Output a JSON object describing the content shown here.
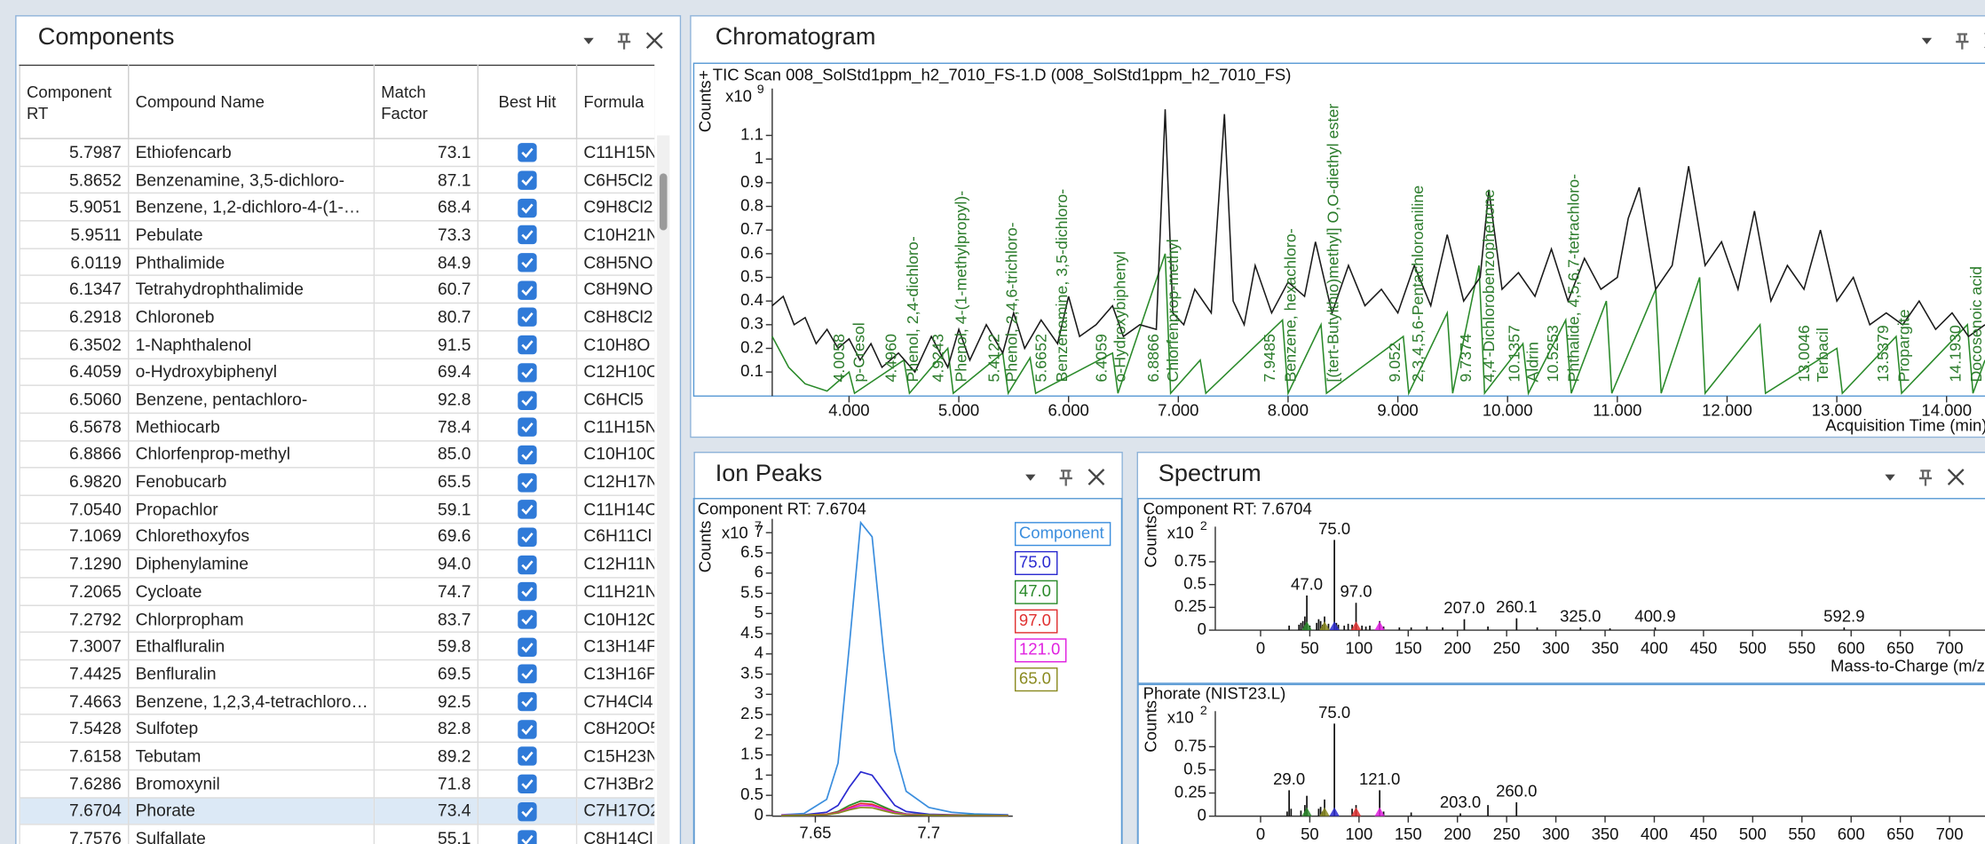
{
  "components": {
    "title": "Components",
    "columns": [
      "Component RT",
      "Compound Name",
      "Match Factor",
      "Best Hit",
      "Formula"
    ],
    "selected_row": 24,
    "rows": [
      [
        "5.7987",
        "Ethiofencarb",
        "73.1",
        true,
        "C11H15N"
      ],
      [
        "5.8652",
        "Benzenamine, 3,5-dichloro-",
        "87.1",
        true,
        "C6H5Cl2"
      ],
      [
        "5.9051",
        "Benzene, 1,2-dichloro-4-(1-…",
        "68.4",
        true,
        "C9H8Cl2"
      ],
      [
        "5.9511",
        "Pebulate",
        "73.3",
        true,
        "C10H21N"
      ],
      [
        "6.0119",
        "Phthalimide",
        "84.9",
        true,
        "C8H5NO"
      ],
      [
        "6.1347",
        "Tetrahydrophthalimide",
        "60.7",
        true,
        "C8H9NO"
      ],
      [
        "6.2918",
        "Chloroneb",
        "80.7",
        true,
        "C8H8Cl2"
      ],
      [
        "6.3502",
        "1-Naphthalenol",
        "91.5",
        true,
        "C10H8O"
      ],
      [
        "6.4059",
        "o-Hydroxybiphenyl",
        "69.4",
        true,
        "C12H10O"
      ],
      [
        "6.5060",
        "Benzene, pentachloro-",
        "92.8",
        true,
        "C6HCl5"
      ],
      [
        "6.5678",
        "Methiocarb",
        "78.4",
        true,
        "C11H15N"
      ],
      [
        "6.8866",
        "Chlorfenprop-methyl",
        "85.0",
        true,
        "C10H10C"
      ],
      [
        "6.9820",
        "Fenobucarb",
        "65.5",
        true,
        "C12H17N"
      ],
      [
        "7.0540",
        "Propachlor",
        "59.1",
        true,
        "C11H14C"
      ],
      [
        "7.1069",
        "Chlorethoxyfos",
        "69.6",
        true,
        "C6H11Cl"
      ],
      [
        "7.1290",
        "Diphenylamine",
        "94.0",
        true,
        "C12H11N"
      ],
      [
        "7.2065",
        "Cycloate",
        "74.7",
        true,
        "C11H21N"
      ],
      [
        "7.2792",
        "Chlorpropham",
        "83.7",
        true,
        "C10H12C"
      ],
      [
        "7.3007",
        "Ethalfluralin",
        "59.8",
        true,
        "C13H14F"
      ],
      [
        "7.4425",
        "Benfluralin",
        "69.5",
        true,
        "C13H16F"
      ],
      [
        "7.4663",
        "Benzene, 1,2,3,4-tetrachloro…",
        "92.5",
        true,
        "C7H4Cl4"
      ],
      [
        "7.5428",
        "Sulfotep",
        "82.8",
        true,
        "C8H20O5"
      ],
      [
        "7.6158",
        "Tebutam",
        "89.2",
        true,
        "C15H23N"
      ],
      [
        "7.6286",
        "Bromoxynil",
        "71.8",
        true,
        "C7H3Br2"
      ],
      [
        "7.6704",
        "Phorate",
        "73.4",
        true,
        "C7H17O2"
      ],
      [
        "7.7576",
        "Sulfallate",
        "55.1",
        true,
        "C8H14Cl"
      ]
    ]
  },
  "chromatogram": {
    "title": "Chromatogram",
    "type": "line",
    "header": "+ TIC Scan 008_SolStd1ppm_h2_7010_FS-1.D (008_SolStd1ppm_h2_7010_FS)",
    "y_label": "Counts",
    "y_scale": "x10",
    "y_exponent": 9,
    "x_label": "Acquisition Time (min)",
    "xlim": [
      3.3,
      14.35
    ],
    "ylim": [
      0,
      1.3
    ],
    "xticks": [
      {
        "value": 4,
        "label": "4.000"
      },
      {
        "value": 5,
        "label": "5.000"
      },
      {
        "value": 6,
        "label": "6.000"
      },
      {
        "value": 7,
        "label": "7.000"
      },
      {
        "value": 8,
        "label": "8.000"
      },
      {
        "value": 9,
        "label": "9.000"
      },
      {
        "value": 10,
        "label": "10.000"
      },
      {
        "value": 11,
        "label": "11.000"
      },
      {
        "value": 12,
        "label": "12.000"
      },
      {
        "value": 13,
        "label": "13.000"
      },
      {
        "value": 14,
        "label": "14.000"
      }
    ],
    "yticks": [
      0.1,
      0.2,
      0.3,
      0.4,
      0.5,
      0.6,
      0.7,
      0.8,
      0.9,
      1,
      1.1
    ],
    "series": [
      {
        "color": "#2a8a2a",
        "x": [
          3.3,
          3.45,
          3.6,
          3.8,
          4.0,
          4.05,
          4.5,
          4.55,
          4.9,
          4.95,
          5.4,
          5.45,
          5.65,
          5.7,
          6.4,
          6.45,
          6.88,
          6.93,
          7.2,
          7.25,
          7.95,
          8.0,
          8.3,
          8.35,
          9.05,
          9.1,
          9.45,
          9.5,
          9.74,
          9.79,
          10.14,
          10.19,
          10.53,
          10.58,
          10.9,
          10.95,
          11.35,
          11.4,
          11.75,
          11.8,
          12.3,
          12.35,
          13.0,
          13.05,
          13.54,
          13.59,
          14.19,
          14.24,
          14.35
        ],
        "values": [
          0.25,
          0.12,
          0.05,
          0.02,
          0.1,
          0.01,
          0.15,
          0.01,
          0.2,
          0.01,
          0.18,
          0.01,
          0.16,
          0.01,
          0.18,
          0.01,
          0.6,
          0.01,
          0.15,
          0.01,
          0.32,
          0.01,
          0.3,
          0.01,
          0.25,
          0.01,
          0.35,
          0.01,
          0.55,
          0.01,
          0.22,
          0.01,
          0.32,
          0.01,
          0.4,
          0.01,
          0.45,
          0.01,
          0.5,
          0.01,
          0.3,
          0.01,
          0.2,
          0.01,
          0.25,
          0.01,
          0.3,
          0.01,
          0.15
        ]
      },
      {
        "color": "#1a1a1a",
        "x": [
          3.3,
          3.4,
          3.5,
          3.6,
          3.7,
          3.8,
          3.9,
          4.0,
          4.1,
          4.2,
          4.3,
          4.45,
          4.6,
          4.75,
          4.9,
          5.0,
          5.1,
          5.25,
          5.4,
          5.5,
          5.6,
          5.75,
          5.9,
          6.0,
          6.1,
          6.25,
          6.4,
          6.5,
          6.65,
          6.8,
          6.88,
          6.95,
          7.05,
          7.15,
          7.3,
          7.42,
          7.5,
          7.6,
          7.7,
          7.85,
          8.0,
          8.15,
          8.25,
          8.4,
          8.55,
          8.7,
          8.85,
          9.0,
          9.15,
          9.3,
          9.45,
          9.6,
          9.75,
          9.83,
          9.95,
          10.1,
          10.25,
          10.4,
          10.55,
          10.7,
          10.85,
          11.0,
          11.1,
          11.2,
          11.35,
          11.5,
          11.65,
          11.8,
          11.95,
          12.1,
          12.25,
          12.4,
          12.55,
          12.7,
          12.85,
          13.0,
          13.15,
          13.3,
          13.45,
          13.6,
          13.75,
          13.9,
          14.05,
          14.2,
          14.35
        ],
        "values": [
          0.38,
          0.42,
          0.3,
          0.33,
          0.22,
          0.28,
          0.2,
          0.24,
          0.15,
          0.22,
          0.12,
          0.18,
          0.1,
          0.25,
          0.12,
          0.28,
          0.15,
          0.3,
          0.18,
          0.35,
          0.2,
          0.32,
          0.22,
          0.42,
          0.25,
          0.3,
          0.38,
          0.25,
          0.3,
          0.28,
          1.21,
          0.35,
          0.3,
          0.45,
          0.35,
          1.19,
          0.4,
          0.3,
          0.55,
          0.35,
          0.48,
          0.42,
          0.65,
          0.35,
          0.55,
          0.38,
          0.45,
          0.35,
          0.55,
          0.38,
          0.68,
          0.4,
          0.5,
          0.87,
          0.45,
          0.52,
          0.42,
          0.62,
          0.4,
          0.58,
          0.45,
          0.5,
          0.75,
          0.88,
          0.45,
          0.55,
          0.97,
          0.55,
          0.65,
          0.45,
          0.78,
          0.4,
          0.55,
          0.45,
          0.7,
          0.4,
          0.5,
          0.3,
          0.35,
          0.3,
          0.4,
          0.28,
          0.35,
          0.25,
          0.3
        ]
      }
    ],
    "annotations": [
      {
        "x": 3.92,
        "text": "4.0058"
      },
      {
        "x": 4.1,
        "text": "p-Cresol"
      },
      {
        "x": 4.39,
        "text": "4.4960"
      },
      {
        "x": 4.59,
        "text": "Phenol, 2,4-dichloro-"
      },
      {
        "x": 4.82,
        "text": "4.9243"
      },
      {
        "x": 5.03,
        "text": "Phenol, 4-(1-methylpropyl)-"
      },
      {
        "x": 5.33,
        "text": "5.4122"
      },
      {
        "x": 5.49,
        "text": "Phenol, 2,4,6-trichloro-"
      },
      {
        "x": 5.76,
        "text": "5.6652"
      },
      {
        "x": 5.95,
        "text": "Benzenamine, 3,5-dichloro-"
      },
      {
        "x": 6.31,
        "text": "6.4059"
      },
      {
        "x": 6.48,
        "text": "o-Hydroxybiphenyl"
      },
      {
        "x": 6.78,
        "text": "6.8866"
      },
      {
        "x": 6.96,
        "text": "Chlorfenprop-methyl"
      },
      {
        "x": 7.84,
        "text": "7.9485"
      },
      {
        "x": 8.03,
        "text": "Benzene, hexachloro-"
      },
      {
        "x": 8.42,
        "text": "[(tert-Butylthio)methyl] O,O-diethyl ester"
      },
      {
        "x": 8.98,
        "text": "9.052"
      },
      {
        "x": 9.19,
        "text": "2,3,4,5,6-Pentachloroaniline"
      },
      {
        "x": 9.63,
        "text": "9.7374"
      },
      {
        "x": 9.84,
        "text": "4,4'-Dichlorobenzophenone"
      },
      {
        "x": 10.07,
        "text": "10.1357"
      },
      {
        "x": 10.24,
        "text": "Aldrin"
      },
      {
        "x": 10.42,
        "text": "10.5253"
      },
      {
        "x": 10.61,
        "text": "Phthalide, 4,5,6,7-tetrachloro-"
      },
      {
        "x": 12.71,
        "text": "13.0046"
      },
      {
        "x": 12.88,
        "text": "Terbacil"
      },
      {
        "x": 13.43,
        "text": "13.5379"
      },
      {
        "x": 13.62,
        "text": "Propargite"
      },
      {
        "x": 14.09,
        "text": "14.1930"
      },
      {
        "x": 14.28,
        "text": "Docosenoic acid"
      }
    ]
  },
  "ion_peaks": {
    "title": "Ion Peaks",
    "type": "line",
    "header": "Component RT: 7.6704",
    "y_label": "Counts",
    "y_scale": "x10",
    "y_exponent": 7,
    "xlim": [
      7.631,
      7.737
    ],
    "ylim": [
      0,
      7.5
    ],
    "xticks": [
      7.65,
      7.7
    ],
    "yticks": [
      0,
      0.5,
      1,
      1.5,
      2,
      2.5,
      3,
      3.5,
      4,
      4.5,
      5,
      5.5,
      6,
      6.5,
      7
    ],
    "x": [
      7.635,
      7.645,
      7.655,
      7.66,
      7.665,
      7.67,
      7.675,
      7.68,
      7.685,
      7.69,
      7.7,
      7.71,
      7.72,
      7.735
    ],
    "series": [
      {
        "name": "Component",
        "color": "#3b8ede",
        "values": [
          0.02,
          0.05,
          0.4,
          1.3,
          4.2,
          7.25,
          6.9,
          4.1,
          1.6,
          0.6,
          0.2,
          0.08,
          0.04,
          0.02
        ]
      },
      {
        "name": "75.0",
        "mz": 75,
        "color": "#2b2bd0",
        "values": [
          0.01,
          0.02,
          0.08,
          0.25,
          0.7,
          1.08,
          1.0,
          0.62,
          0.25,
          0.1,
          0.03,
          0.02,
          0.01,
          0.01
        ]
      },
      {
        "name": "47.0",
        "mz": 47,
        "color": "#2a8a2a",
        "values": [
          0.01,
          0.01,
          0.03,
          0.1,
          0.25,
          0.36,
          0.34,
          0.22,
          0.1,
          0.04,
          0.02,
          0.01,
          0.01,
          0
        ]
      },
      {
        "name": "97.0",
        "mz": 97,
        "color": "#e03030",
        "values": [
          0.01,
          0.01,
          0.03,
          0.08,
          0.2,
          0.3,
          0.28,
          0.18,
          0.08,
          0.03,
          0.01,
          0.01,
          0,
          0
        ]
      },
      {
        "name": "121.0",
        "mz": 121,
        "color": "#e020e0",
        "values": [
          0.01,
          0.01,
          0.02,
          0.07,
          0.17,
          0.25,
          0.24,
          0.16,
          0.07,
          0.03,
          0.01,
          0,
          0,
          0
        ]
      },
      {
        "name": "65.0",
        "mz": 65,
        "color": "#8a8a20",
        "values": [
          0,
          0.01,
          0.02,
          0.06,
          0.14,
          0.2,
          0.19,
          0.12,
          0.05,
          0.02,
          0.01,
          0,
          0,
          0
        ]
      }
    ]
  },
  "spectrum": {
    "title": "Spectrum",
    "type": "bar",
    "x_label": "Mass-to-Charge (m/z)",
    "xlim": [
      -46,
      736
    ],
    "xticks": [
      0,
      50,
      100,
      150,
      200,
      250,
      300,
      350,
      400,
      450,
      500,
      550,
      600,
      650,
      700
    ],
    "panels": [
      {
        "header": "Component RT: 7.6704",
        "y_label": "Counts",
        "y_scale": "x10",
        "y_exponent": 2,
        "ylim": [
          0,
          1.08
        ],
        "yticks": [
          0,
          0.25,
          0.5,
          0.75
        ],
        "mz": [
          29,
          39,
          41,
          43,
          45,
          47,
          50,
          57,
          59,
          61,
          63,
          65,
          69,
          75,
          77,
          79,
          85,
          89,
          93,
          97,
          103,
          107,
          111,
          121,
          125,
          141,
          153,
          169,
          185,
          207,
          231,
          260.1,
          281,
          325,
          355,
          400.9,
          592.9
        ],
        "values": [
          0.05,
          0.06,
          0.08,
          0.1,
          0.15,
          0.38,
          0.05,
          0.08,
          0.12,
          0.1,
          0.06,
          0.15,
          0.07,
          0.99,
          0.08,
          0.06,
          0.05,
          0.07,
          0.06,
          0.3,
          0.05,
          0.04,
          0.05,
          0.1,
          0.04,
          0.03,
          0.03,
          0.04,
          0.03,
          0.12,
          0.04,
          0.13,
          0.03,
          0.03,
          0.02,
          0.03,
          0.03
        ],
        "labels": [
          null,
          null,
          null,
          null,
          null,
          "47.0",
          null,
          null,
          null,
          null,
          null,
          null,
          null,
          "75.0",
          null,
          null,
          null,
          null,
          null,
          "97.0",
          null,
          null,
          null,
          null,
          null,
          null,
          null,
          null,
          null,
          "207.0",
          null,
          "260.1",
          null,
          "325.0",
          null,
          "400.9",
          "592.9"
        ]
      },
      {
        "header": "Phorate (NIST23.L)",
        "y_label": "Counts",
        "y_scale": "x10",
        "y_exponent": 2,
        "ylim": [
          0,
          1.08
        ],
        "yticks": [
          0,
          0.25,
          0.5,
          0.75
        ],
        "mz": [
          27,
          29,
          31,
          41,
          45,
          47,
          59,
          61,
          63,
          65,
          75,
          93,
          97,
          121,
          125,
          153,
          203,
          231,
          260
        ],
        "values": [
          0.05,
          0.28,
          0.08,
          0.06,
          0.12,
          0.22,
          0.08,
          0.1,
          0.05,
          0.18,
          1.0,
          0.08,
          0.12,
          0.28,
          0.05,
          0.04,
          0.03,
          0.12,
          0.15
        ],
        "labels": [
          null,
          "29.0",
          null,
          null,
          null,
          null,
          null,
          null,
          null,
          null,
          "75.0",
          null,
          null,
          "121.0",
          null,
          null,
          "203.0",
          null,
          "260.0"
        ]
      }
    ]
  }
}
